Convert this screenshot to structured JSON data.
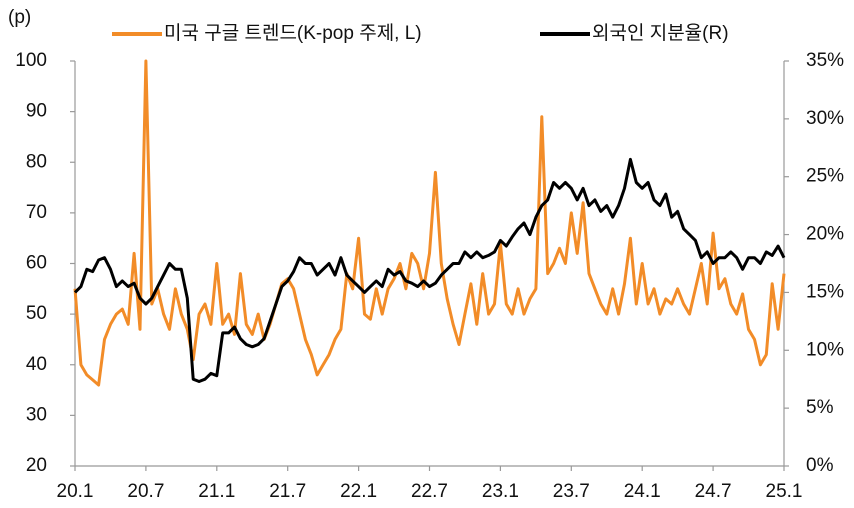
{
  "chart_data": {
    "type": "line",
    "y_label": "(p)",
    "categories": [
      "20.1",
      null,
      null,
      null,
      null,
      null,
      null,
      null,
      null,
      null,
      null,
      null,
      "20.7",
      null,
      null,
      null,
      null,
      null,
      null,
      null,
      null,
      null,
      null,
      null,
      "21.1",
      null,
      null,
      null,
      null,
      null,
      null,
      null,
      null,
      null,
      null,
      null,
      "21.7",
      null,
      null,
      null,
      null,
      null,
      null,
      null,
      null,
      null,
      null,
      null,
      "22.1",
      null,
      null,
      null,
      null,
      null,
      null,
      null,
      null,
      null,
      null,
      null,
      "22.7",
      null,
      null,
      null,
      null,
      null,
      null,
      null,
      null,
      null,
      null,
      null,
      "23.1",
      null,
      null,
      null,
      null,
      null,
      null,
      null,
      null,
      null,
      null,
      null,
      "23.7",
      null,
      null,
      null,
      null,
      null,
      null,
      null,
      null,
      null,
      null,
      null,
      "24.1",
      null,
      null,
      null,
      null,
      null,
      null,
      null,
      null,
      null,
      null,
      null,
      "24.7",
      null,
      null,
      null,
      null,
      null,
      null,
      null,
      null,
      null,
      null,
      null,
      "25.1"
    ],
    "series": [
      {
        "name": "미국 구글 트렌드(K-pop 주제, L)",
        "color": "#f28c28",
        "axis": "y",
        "values": [
          55,
          40,
          38,
          37,
          36,
          45,
          48,
          50,
          51,
          48,
          62,
          47,
          100,
          52,
          55,
          50,
          47,
          55,
          50,
          47,
          41,
          50,
          52,
          48,
          60,
          48,
          50,
          46,
          58,
          48,
          46,
          50,
          45,
          48,
          52,
          56,
          57,
          55,
          50,
          45,
          42,
          38,
          40,
          42,
          45,
          47,
          58,
          55,
          65,
          50,
          49,
          55,
          50,
          55,
          57,
          60,
          55,
          62,
          60,
          55,
          62,
          78,
          60,
          53,
          48,
          44,
          50,
          56,
          48,
          58,
          50,
          52,
          64,
          52,
          50,
          55,
          50,
          53,
          55,
          89,
          58,
          60,
          63,
          60,
          70,
          62,
          72,
          58,
          55,
          52,
          50,
          55,
          50,
          56,
          65,
          52,
          60,
          52,
          55,
          50,
          53,
          52,
          55,
          52,
          50,
          55,
          60,
          52,
          66,
          55,
          57,
          52,
          50,
          54,
          47,
          45,
          40,
          42,
          56,
          47,
          58
        ]
      },
      {
        "name": "외국인 지분율(R)",
        "color": "#000000",
        "axis": "y2",
        "values": [
          15.0,
          15.5,
          17.0,
          16.8,
          17.8,
          18.0,
          17.0,
          15.5,
          16.0,
          15.5,
          15.8,
          14.5,
          14.0,
          14.5,
          15.5,
          16.5,
          17.5,
          17.0,
          17.0,
          14.5,
          7.5,
          7.3,
          7.5,
          8.0,
          7.8,
          11.5,
          11.5,
          12.0,
          11.0,
          10.5,
          10.3,
          10.5,
          11.0,
          12.5,
          14.0,
          15.5,
          16.0,
          16.8,
          18.0,
          17.5,
          17.5,
          16.5,
          17.0,
          17.5,
          16.5,
          18.0,
          16.5,
          16.0,
          15.5,
          15.0,
          15.5,
          16.0,
          15.5,
          17.0,
          16.5,
          16.8,
          16.0,
          15.8,
          15.5,
          16.0,
          15.5,
          15.8,
          16.5,
          17.0,
          17.5,
          17.5,
          18.5,
          18.0,
          18.5,
          18.0,
          18.2,
          18.5,
          19.5,
          19.0,
          19.8,
          20.5,
          21.0,
          20.0,
          21.5,
          22.5,
          23.0,
          24.5,
          24.0,
          24.5,
          24.0,
          23.0,
          24.0,
          22.5,
          23.0,
          22.0,
          22.5,
          21.5,
          22.5,
          24.0,
          26.5,
          24.5,
          24.0,
          24.5,
          23.0,
          22.5,
          23.5,
          21.5,
          22.0,
          20.5,
          20.0,
          19.5,
          18.0,
          18.5,
          17.5,
          18.0,
          18.0,
          18.5,
          18.0,
          17.0,
          18.0,
          18.0,
          17.5,
          18.5,
          18.2,
          19.0,
          18.0
        ]
      }
    ],
    "ylim": [
      20,
      100
    ],
    "yticks": [
      20,
      30,
      40,
      50,
      60,
      70,
      80,
      90,
      100
    ],
    "y2lim": [
      0,
      35
    ],
    "y2ticks": [
      {
        "value": 0,
        "label": "0%"
      },
      {
        "value": 5,
        "label": "5%"
      },
      {
        "value": 10,
        "label": "10%"
      },
      {
        "value": 15,
        "label": "15%"
      },
      {
        "value": 20,
        "label": "20%"
      },
      {
        "value": 25,
        "label": "25%"
      },
      {
        "value": 30,
        "label": "30%"
      },
      {
        "value": 35,
        "label": "35%"
      }
    ],
    "grid": false
  }
}
